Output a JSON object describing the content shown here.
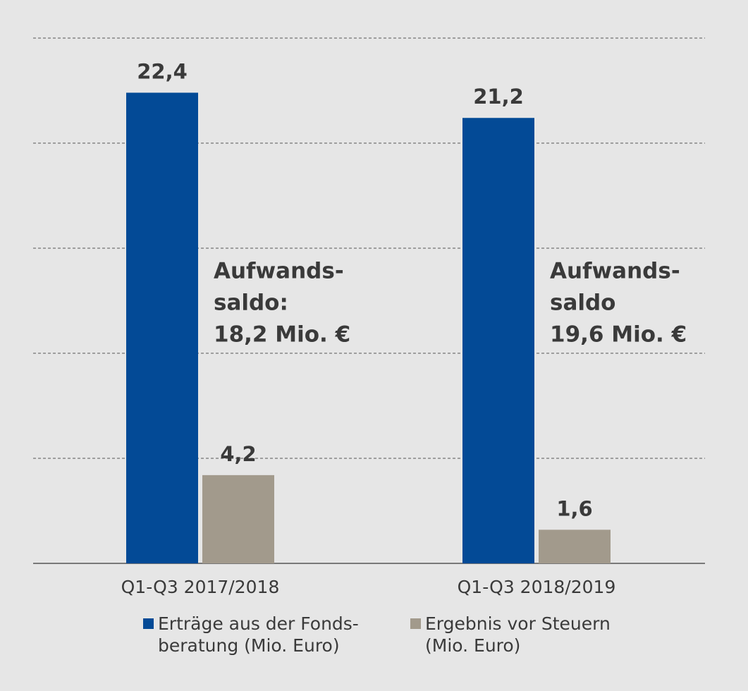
{
  "chart_data": {
    "type": "bar",
    "categories": [
      "Q1-Q3 2017/2018",
      "Q1-Q3 2018/2019"
    ],
    "series": [
      {
        "name": [
          "Erträge aus der Fonds-",
          "beratung (Mio. Euro)"
        ],
        "color": "#034a96",
        "values": [
          22.4,
          21.2
        ],
        "value_labels": [
          "22,4",
          "21,2"
        ]
      },
      {
        "name": [
          "Ergebnis vor Steuern",
          "(Mio. Euro)"
        ],
        "color": "#a29a8c",
        "values": [
          4.2,
          1.6
        ],
        "value_labels": [
          "4,2",
          "1,6"
        ]
      }
    ],
    "annotations": [
      {
        "lines": [
          "Aufwands-",
          "saldo:",
          "18,2 Mio. €"
        ]
      },
      {
        "lines": [
          "Aufwands-",
          "saldo",
          "19,6 Mio. €"
        ]
      }
    ],
    "ylim": [
      0,
      25
    ],
    "yticks": [
      5,
      10,
      15,
      20,
      25
    ],
    "grid": true
  }
}
